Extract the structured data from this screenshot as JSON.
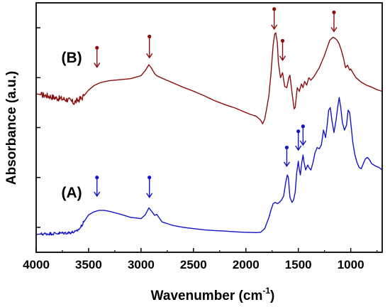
{
  "chart_data": {
    "type": "line",
    "xlabel": "Wavenumber",
    "xlabel_unit_base": "cm",
    "xlabel_unit_exp": "-1",
    "ylabel": "Absorbance (a.u.)",
    "xlim": [
      4000,
      700
    ],
    "x_reversed": true,
    "ylim": [
      0,
      1
    ],
    "y_ticks_labeled": false,
    "y_tick_values": [
      0.1,
      0.3,
      0.5,
      0.7,
      0.9
    ],
    "grid": false,
    "x_ticks": [
      4000,
      3500,
      3000,
      2500,
      2000,
      1500,
      1000
    ],
    "x_tick_labels": [
      "4000",
      "3500",
      "3000",
      "2500",
      "2000",
      "1500",
      "1000"
    ],
    "series": [
      {
        "label": "(B)",
        "label_at": {
          "x": 3760,
          "y": 0.76
        },
        "color": "#8b0e0e",
        "noise": {
          "from": 3950,
          "to": 3550,
          "amplitude": 0.012
        },
        "points": [
          [
            4000,
            0.635
          ],
          [
            3900,
            0.628
          ],
          [
            3800,
            0.618
          ],
          [
            3700,
            0.612
          ],
          [
            3640,
            0.6
          ],
          [
            3560,
            0.62
          ],
          [
            3500,
            0.65
          ],
          [
            3450,
            0.668
          ],
          [
            3400,
            0.678
          ],
          [
            3350,
            0.684
          ],
          [
            3300,
            0.688
          ],
          [
            3200,
            0.692
          ],
          [
            3100,
            0.696
          ],
          [
            3000,
            0.708
          ],
          [
            2960,
            0.728
          ],
          [
            2925,
            0.752
          ],
          [
            2900,
            0.738
          ],
          [
            2870,
            0.716
          ],
          [
            2850,
            0.708
          ],
          [
            2800,
            0.698
          ],
          [
            2700,
            0.68
          ],
          [
            2600,
            0.662
          ],
          [
            2500,
            0.646
          ],
          [
            2400,
            0.628
          ],
          [
            2300,
            0.608
          ],
          [
            2200,
            0.592
          ],
          [
            2100,
            0.578
          ],
          [
            2000,
            0.56
          ],
          [
            1950,
            0.552
          ],
          [
            1900,
            0.545
          ],
          [
            1860,
            0.53
          ],
          [
            1840,
            0.515
          ],
          [
            1820,
            0.535
          ],
          [
            1800,
            0.58
          ],
          [
            1780,
            0.63
          ],
          [
            1760,
            0.72
          ],
          [
            1740,
            0.83
          ],
          [
            1725,
            0.875
          ],
          [
            1715,
            0.88
          ],
          [
            1700,
            0.84
          ],
          [
            1690,
            0.76
          ],
          [
            1670,
            0.7
          ],
          [
            1650,
            0.72
          ],
          [
            1630,
            0.665
          ],
          [
            1610,
            0.66
          ],
          [
            1590,
            0.7
          ],
          [
            1580,
            0.71
          ],
          [
            1560,
            0.64
          ],
          [
            1540,
            0.575
          ],
          [
            1530,
            0.58
          ],
          [
            1510,
            0.66
          ],
          [
            1490,
            0.645
          ],
          [
            1470,
            0.675
          ],
          [
            1455,
            0.66
          ],
          [
            1440,
            0.685
          ],
          [
            1420,
            0.67
          ],
          [
            1400,
            0.7
          ],
          [
            1380,
            0.69
          ],
          [
            1350,
            0.705
          ],
          [
            1300,
            0.74
          ],
          [
            1250,
            0.79
          ],
          [
            1200,
            0.85
          ],
          [
            1170,
            0.862
          ],
          [
            1150,
            0.858
          ],
          [
            1130,
            0.85
          ],
          [
            1110,
            0.835
          ],
          [
            1090,
            0.81
          ],
          [
            1070,
            0.78
          ],
          [
            1050,
            0.74
          ],
          [
            1030,
            0.75
          ],
          [
            1010,
            0.73
          ],
          [
            1000,
            0.735
          ],
          [
            980,
            0.72
          ],
          [
            950,
            0.7
          ],
          [
            900,
            0.682
          ],
          [
            850,
            0.67
          ],
          [
            800,
            0.662
          ],
          [
            750,
            0.652
          ],
          [
            700,
            0.645
          ]
        ],
        "markers": [
          {
            "x": 3420,
            "tip": 0.742,
            "tail": 0.82
          },
          {
            "x": 2920,
            "tip": 0.78,
            "tail": 0.865
          },
          {
            "x": 1730,
            "tip": 0.895,
            "tail": 0.975
          },
          {
            "x": 1650,
            "tip": 0.77,
            "tail": 0.848
          },
          {
            "x": 1160,
            "tip": 0.885,
            "tail": 0.962
          }
        ]
      },
      {
        "label": "(A)",
        "label_at": {
          "x": 3760,
          "y": 0.22
        },
        "color": "#1414c8",
        "noise": {
          "from": 3950,
          "to": 3550,
          "amplitude": 0.006
        },
        "points": [
          [
            4000,
            0.072
          ],
          [
            3900,
            0.074
          ],
          [
            3800,
            0.076
          ],
          [
            3700,
            0.078
          ],
          [
            3620,
            0.082
          ],
          [
            3580,
            0.098
          ],
          [
            3540,
            0.125
          ],
          [
            3500,
            0.15
          ],
          [
            3450,
            0.162
          ],
          [
            3400,
            0.168
          ],
          [
            3350,
            0.168
          ],
          [
            3300,
            0.164
          ],
          [
            3200,
            0.153
          ],
          [
            3100,
            0.14
          ],
          [
            3000,
            0.135
          ],
          [
            2960,
            0.15
          ],
          [
            2925,
            0.178
          ],
          [
            2900,
            0.165
          ],
          [
            2870,
            0.148
          ],
          [
            2850,
            0.152
          ],
          [
            2830,
            0.14
          ],
          [
            2800,
            0.122
          ],
          [
            2700,
            0.108
          ],
          [
            2600,
            0.1
          ],
          [
            2500,
            0.095
          ],
          [
            2400,
            0.09
          ],
          [
            2300,
            0.087
          ],
          [
            2200,
            0.085
          ],
          [
            2100,
            0.082
          ],
          [
            2000,
            0.08
          ],
          [
            1900,
            0.079
          ],
          [
            1860,
            0.08
          ],
          [
            1820,
            0.095
          ],
          [
            1780,
            0.14
          ],
          [
            1760,
            0.17
          ],
          [
            1740,
            0.195
          ],
          [
            1720,
            0.2
          ],
          [
            1700,
            0.195
          ],
          [
            1680,
            0.2
          ],
          [
            1660,
            0.21
          ],
          [
            1640,
            0.225
          ],
          [
            1620,
            0.28
          ],
          [
            1605,
            0.31
          ],
          [
            1595,
            0.3
          ],
          [
            1580,
            0.22
          ],
          [
            1560,
            0.2
          ],
          [
            1545,
            0.21
          ],
          [
            1530,
            0.24
          ],
          [
            1515,
            0.32
          ],
          [
            1500,
            0.365
          ],
          [
            1490,
            0.33
          ],
          [
            1480,
            0.31
          ],
          [
            1470,
            0.35
          ],
          [
            1455,
            0.39
          ],
          [
            1445,
            0.36
          ],
          [
            1430,
            0.33
          ],
          [
            1410,
            0.35
          ],
          [
            1400,
            0.34
          ],
          [
            1380,
            0.33
          ],
          [
            1360,
            0.36
          ],
          [
            1340,
            0.4
          ],
          [
            1320,
            0.42
          ],
          [
            1300,
            0.415
          ],
          [
            1280,
            0.43
          ],
          [
            1260,
            0.49
          ],
          [
            1240,
            0.46
          ],
          [
            1225,
            0.51
          ],
          [
            1210,
            0.57
          ],
          [
            1195,
            0.58
          ],
          [
            1180,
            0.53
          ],
          [
            1160,
            0.48
          ],
          [
            1140,
            0.53
          ],
          [
            1125,
            0.58
          ],
          [
            1110,
            0.62
          ],
          [
            1095,
            0.58
          ],
          [
            1080,
            0.52
          ],
          [
            1060,
            0.49
          ],
          [
            1040,
            0.51
          ],
          [
            1025,
            0.57
          ],
          [
            1010,
            0.56
          ],
          [
            995,
            0.5
          ],
          [
            980,
            0.44
          ],
          [
            960,
            0.39
          ],
          [
            940,
            0.36
          ],
          [
            920,
            0.34
          ],
          [
            900,
            0.335
          ],
          [
            880,
            0.355
          ],
          [
            860,
            0.375
          ],
          [
            840,
            0.38
          ],
          [
            820,
            0.37
          ],
          [
            800,
            0.355
          ],
          [
            760,
            0.345
          ],
          [
            730,
            0.34
          ],
          [
            700,
            0.33
          ]
        ],
        "markers": [
          {
            "x": 3420,
            "tip": 0.225,
            "tail": 0.3
          },
          {
            "x": 2920,
            "tip": 0.22,
            "tail": 0.3
          },
          {
            "x": 1610,
            "tip": 0.345,
            "tail": 0.42
          },
          {
            "x": 1500,
            "tip": 0.41,
            "tail": 0.485
          },
          {
            "x": 1455,
            "tip": 0.43,
            "tail": 0.505
          }
        ]
      }
    ]
  }
}
